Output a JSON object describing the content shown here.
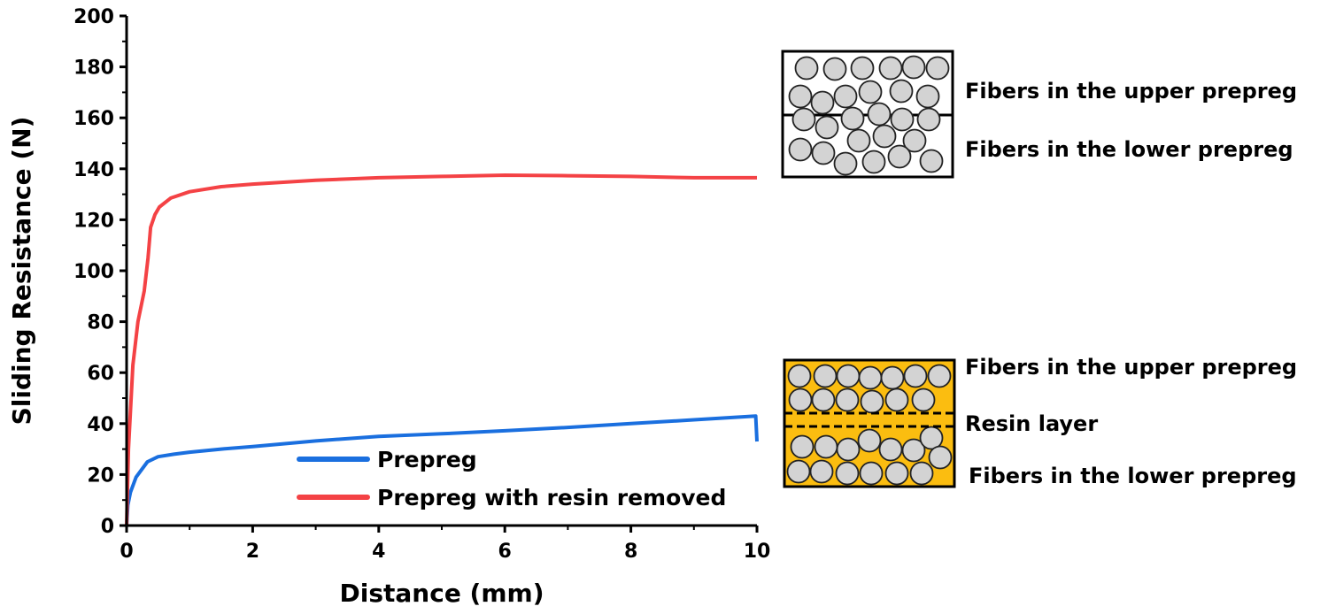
{
  "chart_data": {
    "type": "line",
    "title": "",
    "xlabel": "Distance (mm)",
    "ylabel": "Sliding Resistance (N)",
    "xlim": [
      0,
      10
    ],
    "ylim": [
      0,
      200
    ],
    "xticks": [
      0,
      2,
      4,
      6,
      8,
      10
    ],
    "yticks": [
      0,
      20,
      40,
      60,
      80,
      100,
      120,
      140,
      160,
      180,
      200
    ],
    "grid": false,
    "legend_position": "bottom-right",
    "series": [
      {
        "name": "Prepreg",
        "color": "#1a6fdf",
        "x": [
          0,
          0.02,
          0.06,
          0.15,
          0.33,
          0.5,
          0.75,
          1,
          1.5,
          2,
          3,
          4,
          5,
          6,
          7,
          8,
          9,
          9.98,
          10
        ],
        "y": [
          0,
          8,
          13,
          19,
          25,
          27,
          28,
          28.8,
          30,
          31,
          33.2,
          35,
          36,
          37.2,
          38.5,
          40,
          41.5,
          43,
          33
        ]
      },
      {
        "name": "Prepreg with resin removed",
        "color": "#f44245",
        "x": [
          0,
          0.03,
          0.1,
          0.18,
          0.28,
          0.34,
          0.38,
          0.45,
          0.52,
          0.7,
          1,
          1.5,
          2,
          3,
          4,
          5,
          6,
          7,
          8,
          9,
          10
        ],
        "y": [
          0,
          30,
          63,
          80,
          92,
          105,
          117,
          122,
          125,
          128.5,
          131,
          133,
          134,
          135.5,
          136.5,
          137,
          137.5,
          137.3,
          137,
          136.5,
          136.5
        ]
      }
    ]
  },
  "annotations": {
    "upper_diagram": {
      "top_label": "Fibers in the upper prepreg",
      "bottom_label": "Fibers in the lower prepreg"
    },
    "lower_diagram": {
      "top_label": "Fibers in the upper prepreg",
      "middle_label": "Resin layer",
      "bottom_label": "Fibers in the lower prepreg",
      "resin_color": "#fbbd10"
    }
  }
}
